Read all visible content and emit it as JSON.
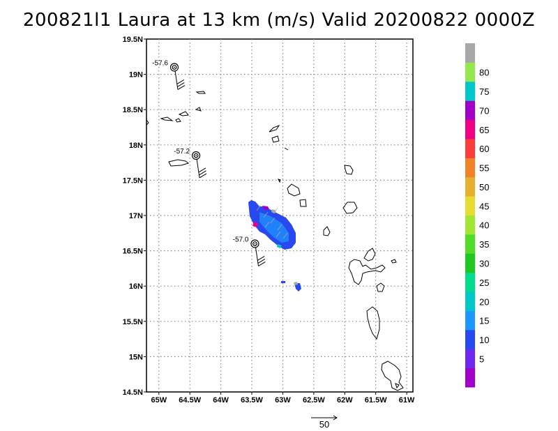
{
  "title": "200821l1 Laura at 13 km (m/s) Valid 20200822 0000Z",
  "map": {
    "lat_labels": [
      "19.5N",
      "19N",
      "18.5N",
      "18N",
      "17.5N",
      "17N",
      "16.5N",
      "16N",
      "15.5N",
      "15N",
      "14.5N"
    ],
    "lon_labels": [
      "65W",
      "64.5W",
      "64W",
      "63.5W",
      "63W",
      "62.5W",
      "62W",
      "61.5W",
      "61W"
    ],
    "lat_range": [
      14.5,
      19.5
    ],
    "lon_range": [
      -65.2,
      -60.9
    ],
    "grid": true
  },
  "storm_fixes": [
    {
      "label": "-57.6",
      "lat": 19.1,
      "lon": -64.75
    },
    {
      "label": "-57.2",
      "lat": 17.85,
      "lon": -64.4
    },
    {
      "label": "-57.0",
      "lat": 16.6,
      "lon": -63.45
    }
  ],
  "colorbar": {
    "labels": [
      "5",
      "10",
      "15",
      "20",
      "25",
      "30",
      "35",
      "40",
      "45",
      "50",
      "55",
      "60",
      "65",
      "70",
      "75",
      "80"
    ],
    "colors": [
      "#a000c8",
      "#6e28f0",
      "#2848f0",
      "#1e96ff",
      "#00c8c8",
      "#00dc8c",
      "#1ec81e",
      "#50dc28",
      "#a0e632",
      "#e6dc32",
      "#e6af2d",
      "#f08228",
      "#fa3c3c",
      "#f00082",
      "#a000c8",
      "#00c8c8",
      "#96e650",
      "#a8a8a8"
    ]
  },
  "reference_vector": {
    "label": "50"
  }
}
